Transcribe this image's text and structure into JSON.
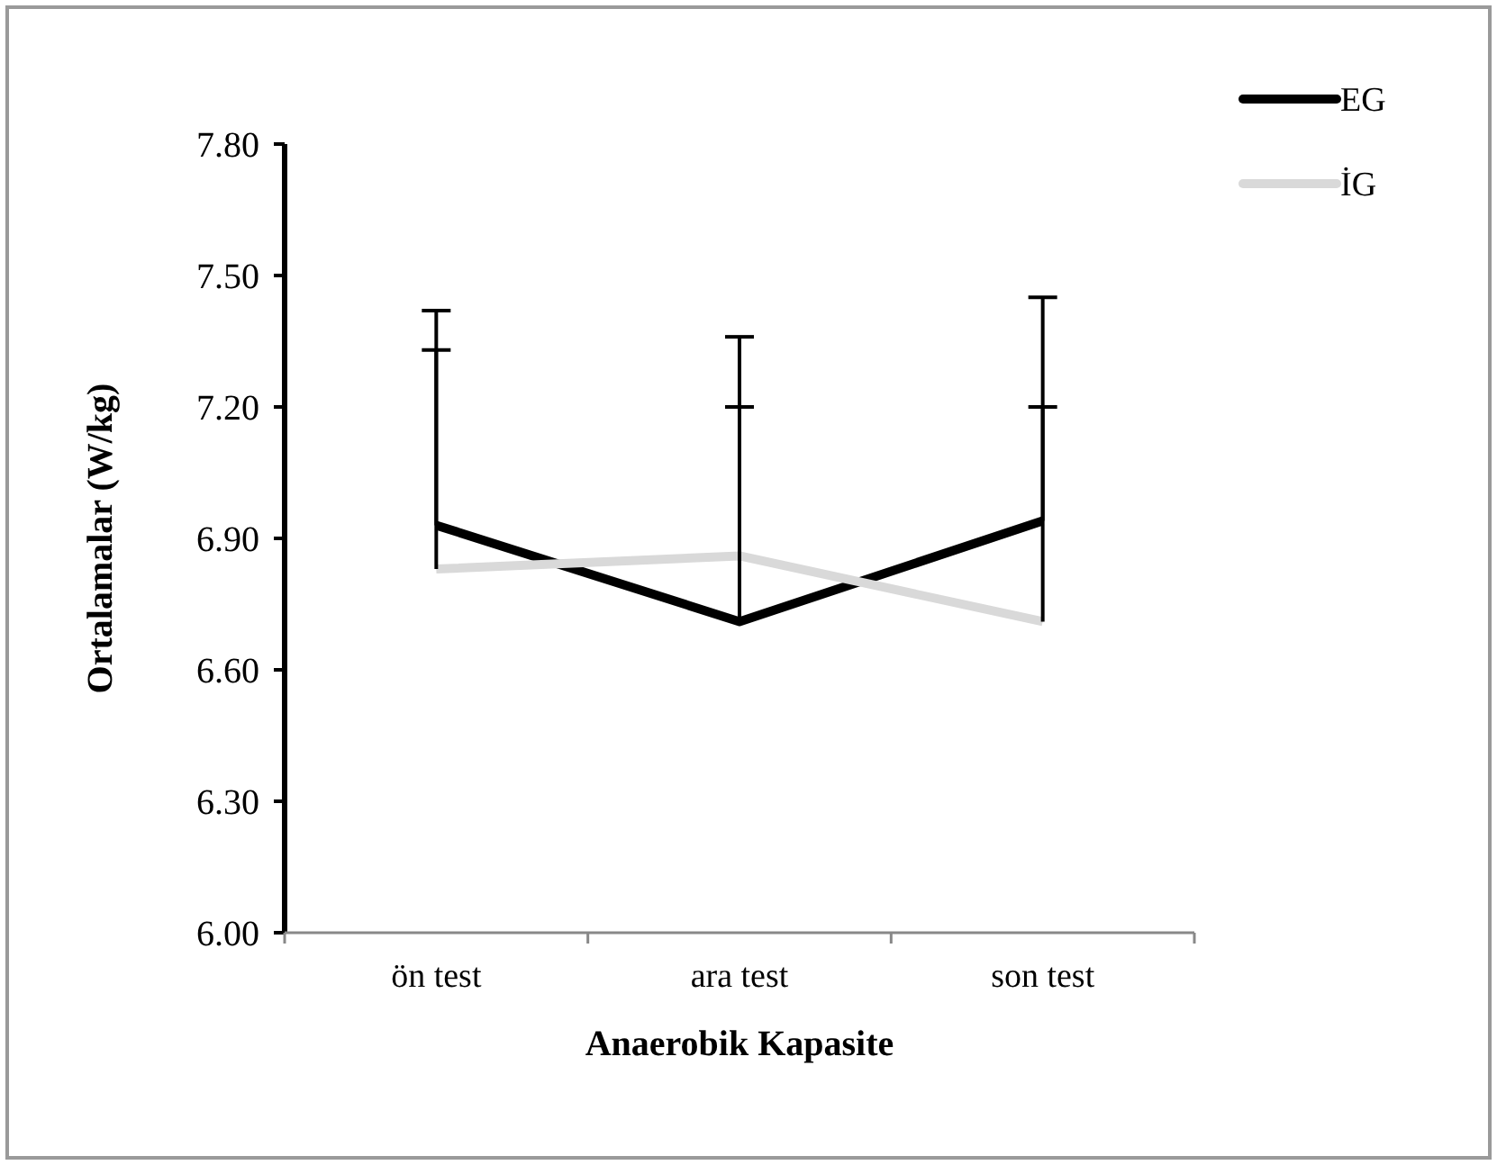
{
  "chart_data": {
    "type": "line",
    "xlabel": "Anaerobik Kapasite",
    "ylabel": "Ortalamalar (W/kg)",
    "categories": [
      "ön test",
      "ara test",
      "son test"
    ],
    "series": [
      {
        "name": "EG",
        "color": "#000000",
        "values": [
          6.93,
          6.71,
          6.94
        ],
        "errors": [
          [
            6.93,
            7.42
          ],
          [
            6.71,
            7.36
          ],
          [
            6.94,
            7.45
          ]
        ]
      },
      {
        "name": "İG",
        "color": "#d9d9d9",
        "values": [
          6.83,
          6.86,
          6.71
        ],
        "errors": [
          [
            6.83,
            7.33
          ],
          [
            6.86,
            7.2
          ],
          [
            6.71,
            7.2
          ]
        ]
      }
    ],
    "ylim": [
      6,
      7.8
    ],
    "yticks": [
      {
        "value": 6,
        "label": "6.00"
      },
      {
        "value": 6.3,
        "label": "6.30"
      },
      {
        "value": 6.6,
        "label": "6.60"
      },
      {
        "value": 6.9,
        "label": "6.90"
      },
      {
        "value": 7.2,
        "label": "7.20"
      },
      {
        "value": 7.5,
        "label": "7.50"
      },
      {
        "value": 7.8,
        "label": "7.80"
      }
    ],
    "grid": false,
    "legend": "top right",
    "marker": "none",
    "line_style": "solid"
  }
}
